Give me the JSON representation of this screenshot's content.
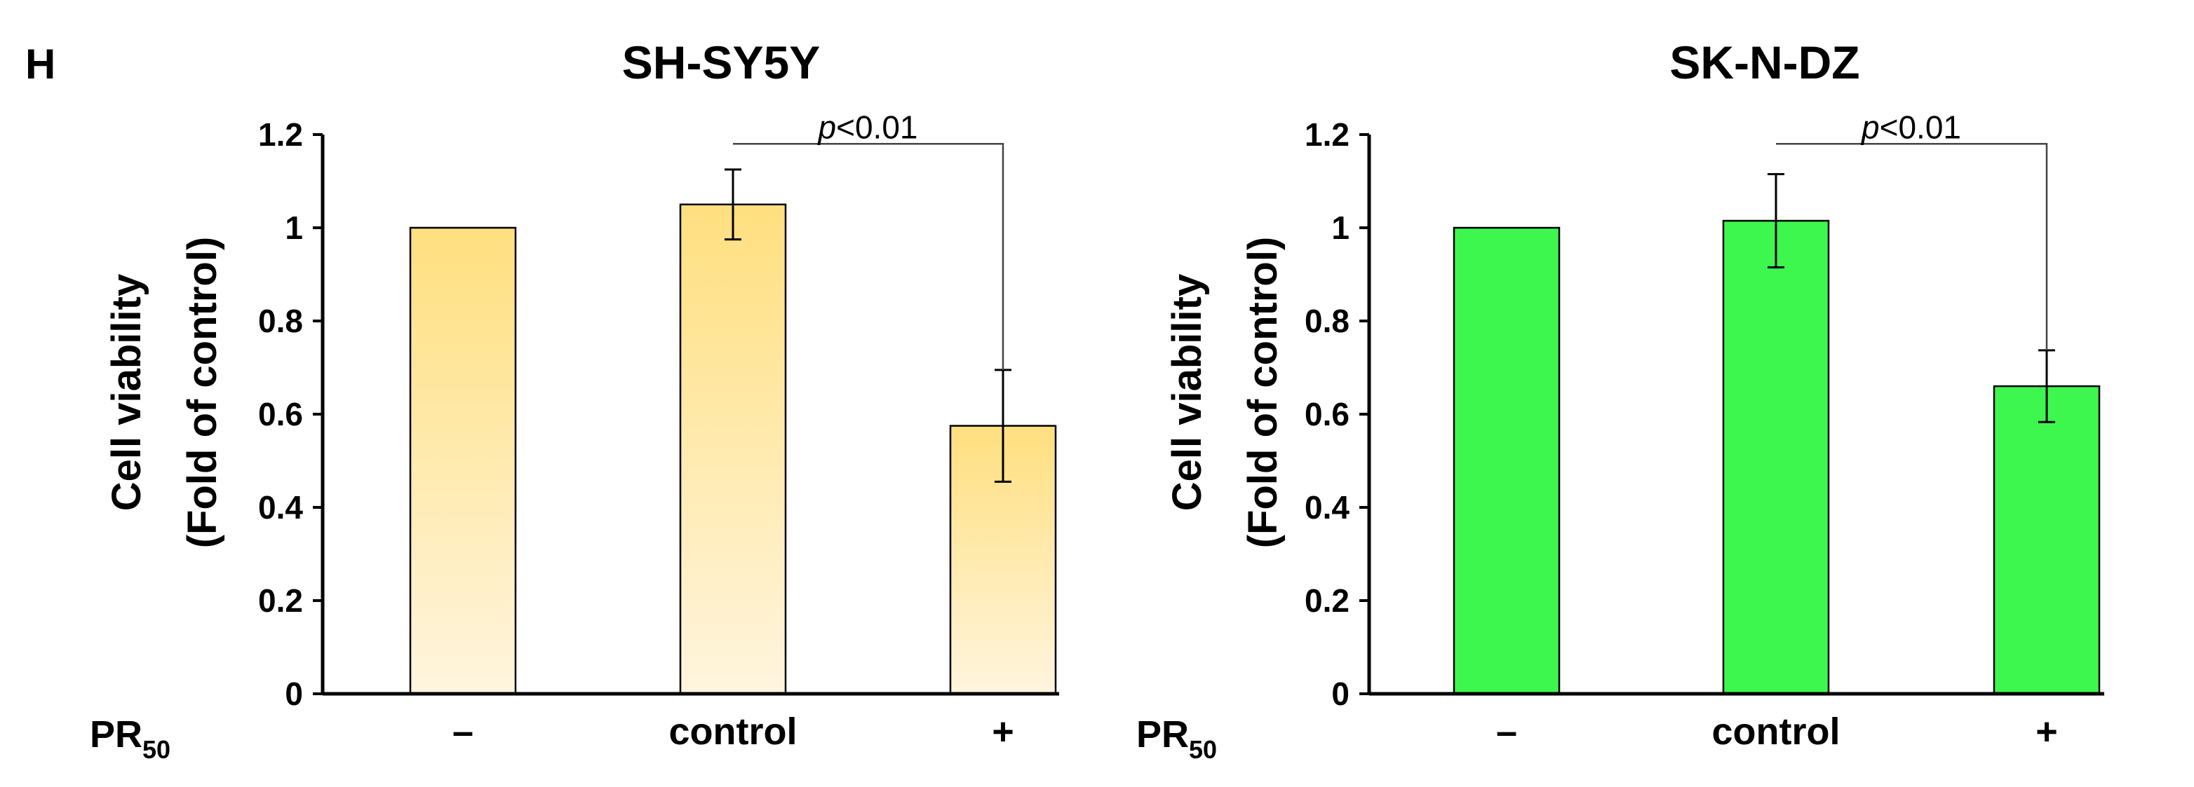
{
  "panel_letter": "H",
  "colors": {
    "yellow_top": "#ffdf7f",
    "yellow_bottom": "#fff5df",
    "green": "#3df74f",
    "axis": "#000000"
  },
  "treatment": {
    "label": "PR",
    "subscript": "50"
  },
  "chart_data": [
    {
      "type": "bar",
      "title": "SH-SY5Y",
      "ylabel_line1": "Cell  viability",
      "ylabel_line2": "(Fold of control)",
      "xlabel": "",
      "ylim": [
        0,
        1.2
      ],
      "yticks": [
        0,
        0.2,
        0.4,
        0.6,
        0.8,
        1,
        1.2
      ],
      "ytick_labels": [
        "0",
        "0.2",
        "0.4",
        "0.6",
        "0.8",
        "1",
        "1.2"
      ],
      "categories": [
        "–",
        "control",
        "+"
      ],
      "values": [
        1.0,
        1.05,
        0.575
      ],
      "errors": [
        0,
        0.075,
        0.12
      ],
      "fill": "yellow-gradient",
      "significance": {
        "from": 1,
        "to": 2,
        "label_italic": "p",
        "label_rest": "<0.01",
        "level": 1.18
      }
    },
    {
      "type": "bar",
      "title": "SK-N-DZ",
      "ylabel_line1": "Cell  viability",
      "ylabel_line2": "(Fold of control)",
      "xlabel": "",
      "ylim": [
        0,
        1.2
      ],
      "yticks": [
        0,
        0.2,
        0.4,
        0.6,
        0.8,
        1,
        1.2
      ],
      "ytick_labels": [
        "0",
        "0.2",
        "0.4",
        "0.6",
        "0.8",
        "1",
        "1.2"
      ],
      "categories": [
        "–",
        "control",
        "+"
      ],
      "values": [
        1.0,
        1.015,
        0.66
      ],
      "errors": [
        0,
        0.1,
        0.077
      ],
      "fill": "green",
      "significance": {
        "from": 1,
        "to": 2,
        "label_italic": "p",
        "label_rest": "<0.01",
        "level": 1.18
      }
    }
  ]
}
